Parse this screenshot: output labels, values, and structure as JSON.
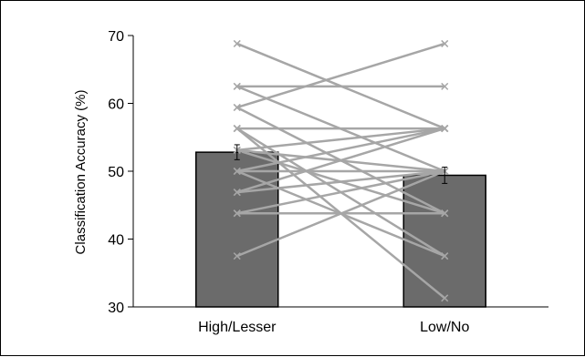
{
  "chart_data": {
    "type": "bar",
    "title": "",
    "xlabel": "",
    "ylabel": "Classification Accuracy (%)",
    "ylim": [
      30,
      70
    ],
    "yticks": [
      30,
      40,
      50,
      60,
      70
    ],
    "categories": [
      "High/Lesser",
      "Low/No"
    ],
    "values": [
      52.8,
      49.4
    ],
    "error": [
      1.1,
      1.2
    ],
    "grid": false,
    "legend": "none",
    "bar_color": "#6b6b6b",
    "line_color": "#a6a6a6",
    "participants": [
      [
        68.8,
        56.3
      ],
      [
        62.5,
        62.5
      ],
      [
        62.5,
        50.0
      ],
      [
        59.4,
        68.8
      ],
      [
        59.4,
        43.8
      ],
      [
        56.3,
        56.3
      ],
      [
        56.3,
        37.5
      ],
      [
        56.3,
        31.3
      ],
      [
        53.1,
        56.3
      ],
      [
        53.1,
        50.0
      ],
      [
        53.1,
        43.8
      ],
      [
        50.0,
        56.3
      ],
      [
        50.0,
        50.0
      ],
      [
        50.0,
        37.5
      ],
      [
        46.9,
        56.3
      ],
      [
        46.9,
        50.0
      ],
      [
        43.8,
        43.8
      ],
      [
        43.8,
        50.0
      ],
      [
        37.5,
        50.0
      ]
    ]
  }
}
